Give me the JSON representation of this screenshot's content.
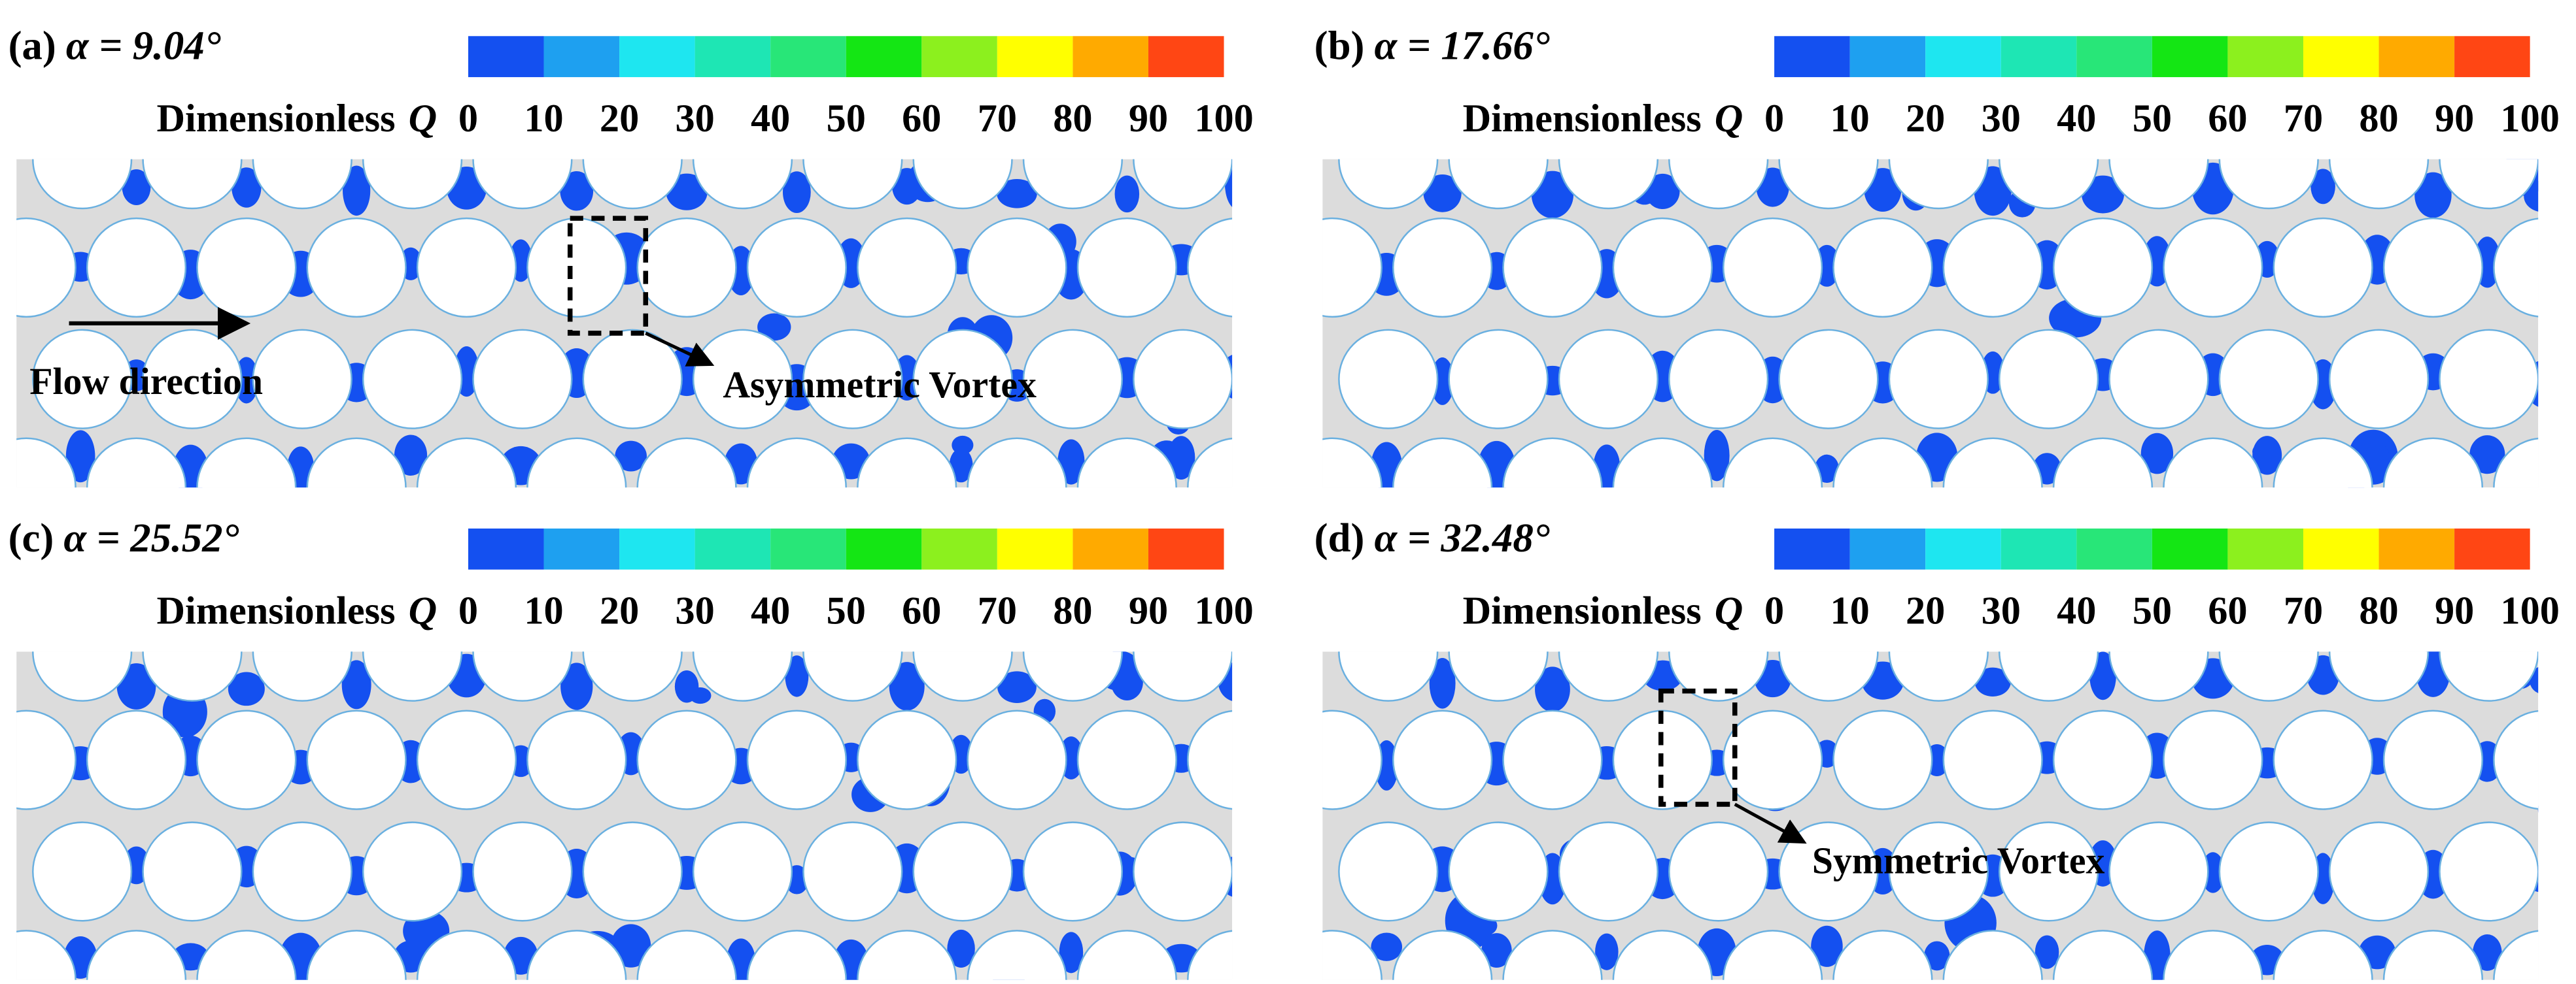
{
  "colorbar": {
    "title": "Dimensionless",
    "symbol": "Q",
    "ticks": [
      0,
      10,
      20,
      30,
      40,
      50,
      60,
      70,
      80,
      90,
      100
    ],
    "colors": [
      "#1450f0",
      "#1ea0f0",
      "#1ee6f0",
      "#1ee6b4",
      "#28e678",
      "#14e614",
      "#8cf01e",
      "#ffff00",
      "#ffaa00",
      "#ff4614"
    ]
  },
  "panels": [
    {
      "label": "(a)",
      "angle": "α = 9.04°",
      "annotations": [
        "Flow direction",
        "Asymmetric Vortex"
      ]
    },
    {
      "label": "(b)",
      "angle": "α = 17.66°",
      "annotations": []
    },
    {
      "label": "(c)",
      "angle": "α = 25.52°",
      "annotations": []
    },
    {
      "label": "(d)",
      "angle": "α = 32.48°",
      "annotations": [
        "Symmetric Vortex"
      ]
    }
  ]
}
